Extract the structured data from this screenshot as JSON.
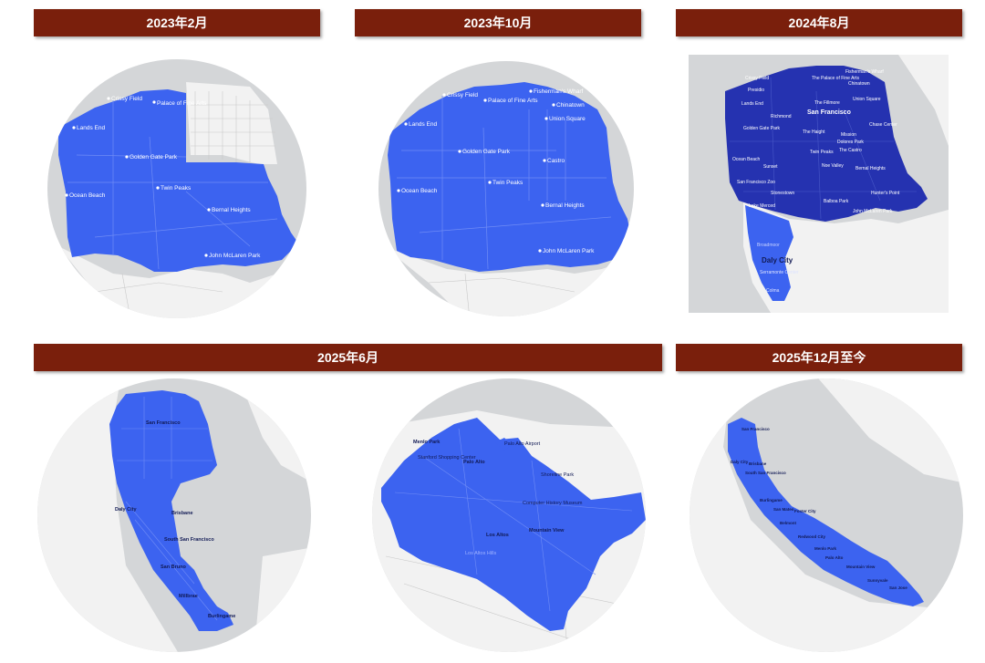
{
  "banners": {
    "b1": "2023年2月",
    "b2": "2023年10月",
    "b3": "2024年8月",
    "b4": "2025年6月",
    "b5": "2025年12月至今"
  },
  "colors": {
    "banner": "#7a1f0c",
    "coverage": "#3c63f0",
    "coverage_dark": "#2532b0",
    "land": "#f2f2f2",
    "water": "#d4d6d8"
  },
  "maps": {
    "m1": {
      "places": [
        "Crissy Field",
        "Palace of Fine Arts",
        "Lands End",
        "Golden Gate Park",
        "Ocean Beach",
        "Twin Peaks",
        "Bernal Heights",
        "John McLaren Park"
      ]
    },
    "m2": {
      "places": [
        "Crissy Field",
        "Palace of Fine Arts",
        "Fisherman's Wharf",
        "Chinatown",
        "Union Square",
        "Lands End",
        "Golden Gate Park",
        "Castro",
        "Ocean Beach",
        "Twin Peaks",
        "Bernal Heights",
        "John McLaren Park"
      ]
    },
    "m3": {
      "places": [
        "Crissy Field",
        "The Palace of Fine Arts",
        "Fisherman's Wharf",
        "Chinatown",
        "Presidio",
        "The Fillmore",
        "Union Square",
        "Lands End",
        "San Francisco",
        "Richmond",
        "Golden Gate Park",
        "The Haight",
        "Mission",
        "Chase Center",
        "Dolores Park",
        "Ocean Beach",
        "Twin Peaks",
        "The Castro",
        "Sunset",
        "Noe Valley",
        "Bernal Heights",
        "San Francisco Zoo",
        "Stonestown",
        "Balboa Park",
        "Hunter's Point",
        "Lake Merced",
        "John McLaren Park",
        "Broadmoor",
        "Daly City",
        "Serramonte Center",
        "Colma"
      ]
    },
    "m4": {
      "places": [
        "San Francisco",
        "Daly City",
        "Brisbane",
        "South San Francisco",
        "San Bruno",
        "Millbrae",
        "Burlingame"
      ]
    },
    "m5": {
      "places": [
        "Menlo Park",
        "Palo Alto Airport",
        "Stanford Shopping Center",
        "Palo Alto",
        "Shoreline Park",
        "Computer History Museum",
        "Los Altos",
        "Mountain View",
        "Los Altos Hills"
      ]
    },
    "m6": {
      "places": [
        "San Francisco",
        "Daly City",
        "Brisbane",
        "South San Francisco",
        "Burlingame",
        "San Mateo",
        "Foster City",
        "Belmont",
        "Redwood City",
        "Menlo Park",
        "Palo Alto",
        "Mountain View",
        "Sunnyvale",
        "San Jose"
      ]
    }
  }
}
